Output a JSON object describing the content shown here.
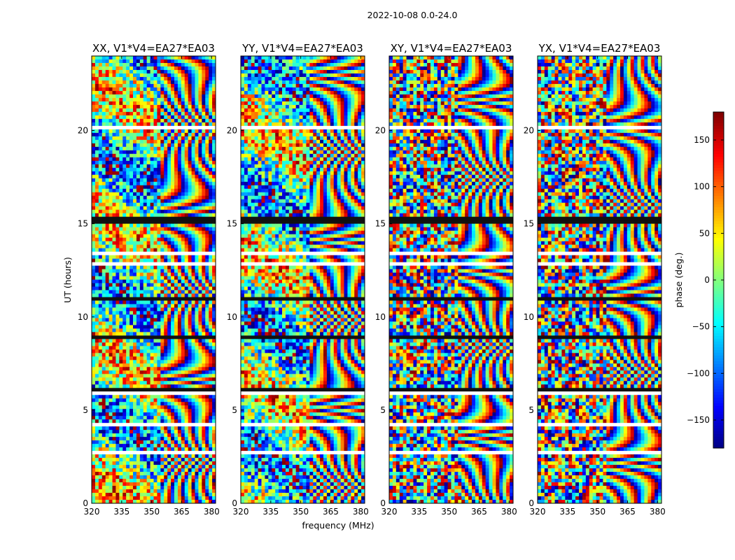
{
  "chart_data": {
    "type": "heatmap",
    "suptitle": "2022-10-08 0.0-24.0",
    "xlabel": "frequency (MHz)",
    "ylabel": "UT (hours)",
    "xlim": [
      320,
      382
    ],
    "ylim": [
      0,
      24
    ],
    "xticks": [
      "320",
      "335",
      "350",
      "365",
      "380"
    ],
    "yticks": [
      "0",
      "5",
      "10",
      "15",
      "20"
    ],
    "panels": [
      {
        "title": "XX, V1*V4=EA27*EA03"
      },
      {
        "title": "YY, V1*V4=EA27*EA03"
      },
      {
        "title": "XY, V1*V4=EA27*EA03"
      },
      {
        "title": "YX, V1*V4=EA27*EA03"
      }
    ],
    "colorbar": {
      "label": "phase (deg.)",
      "range": [
        -180,
        180
      ],
      "ticks": [
        "150",
        "100",
        "50",
        "0",
        "−50",
        "−100",
        "−150"
      ],
      "colormap": "jet"
    }
  }
}
